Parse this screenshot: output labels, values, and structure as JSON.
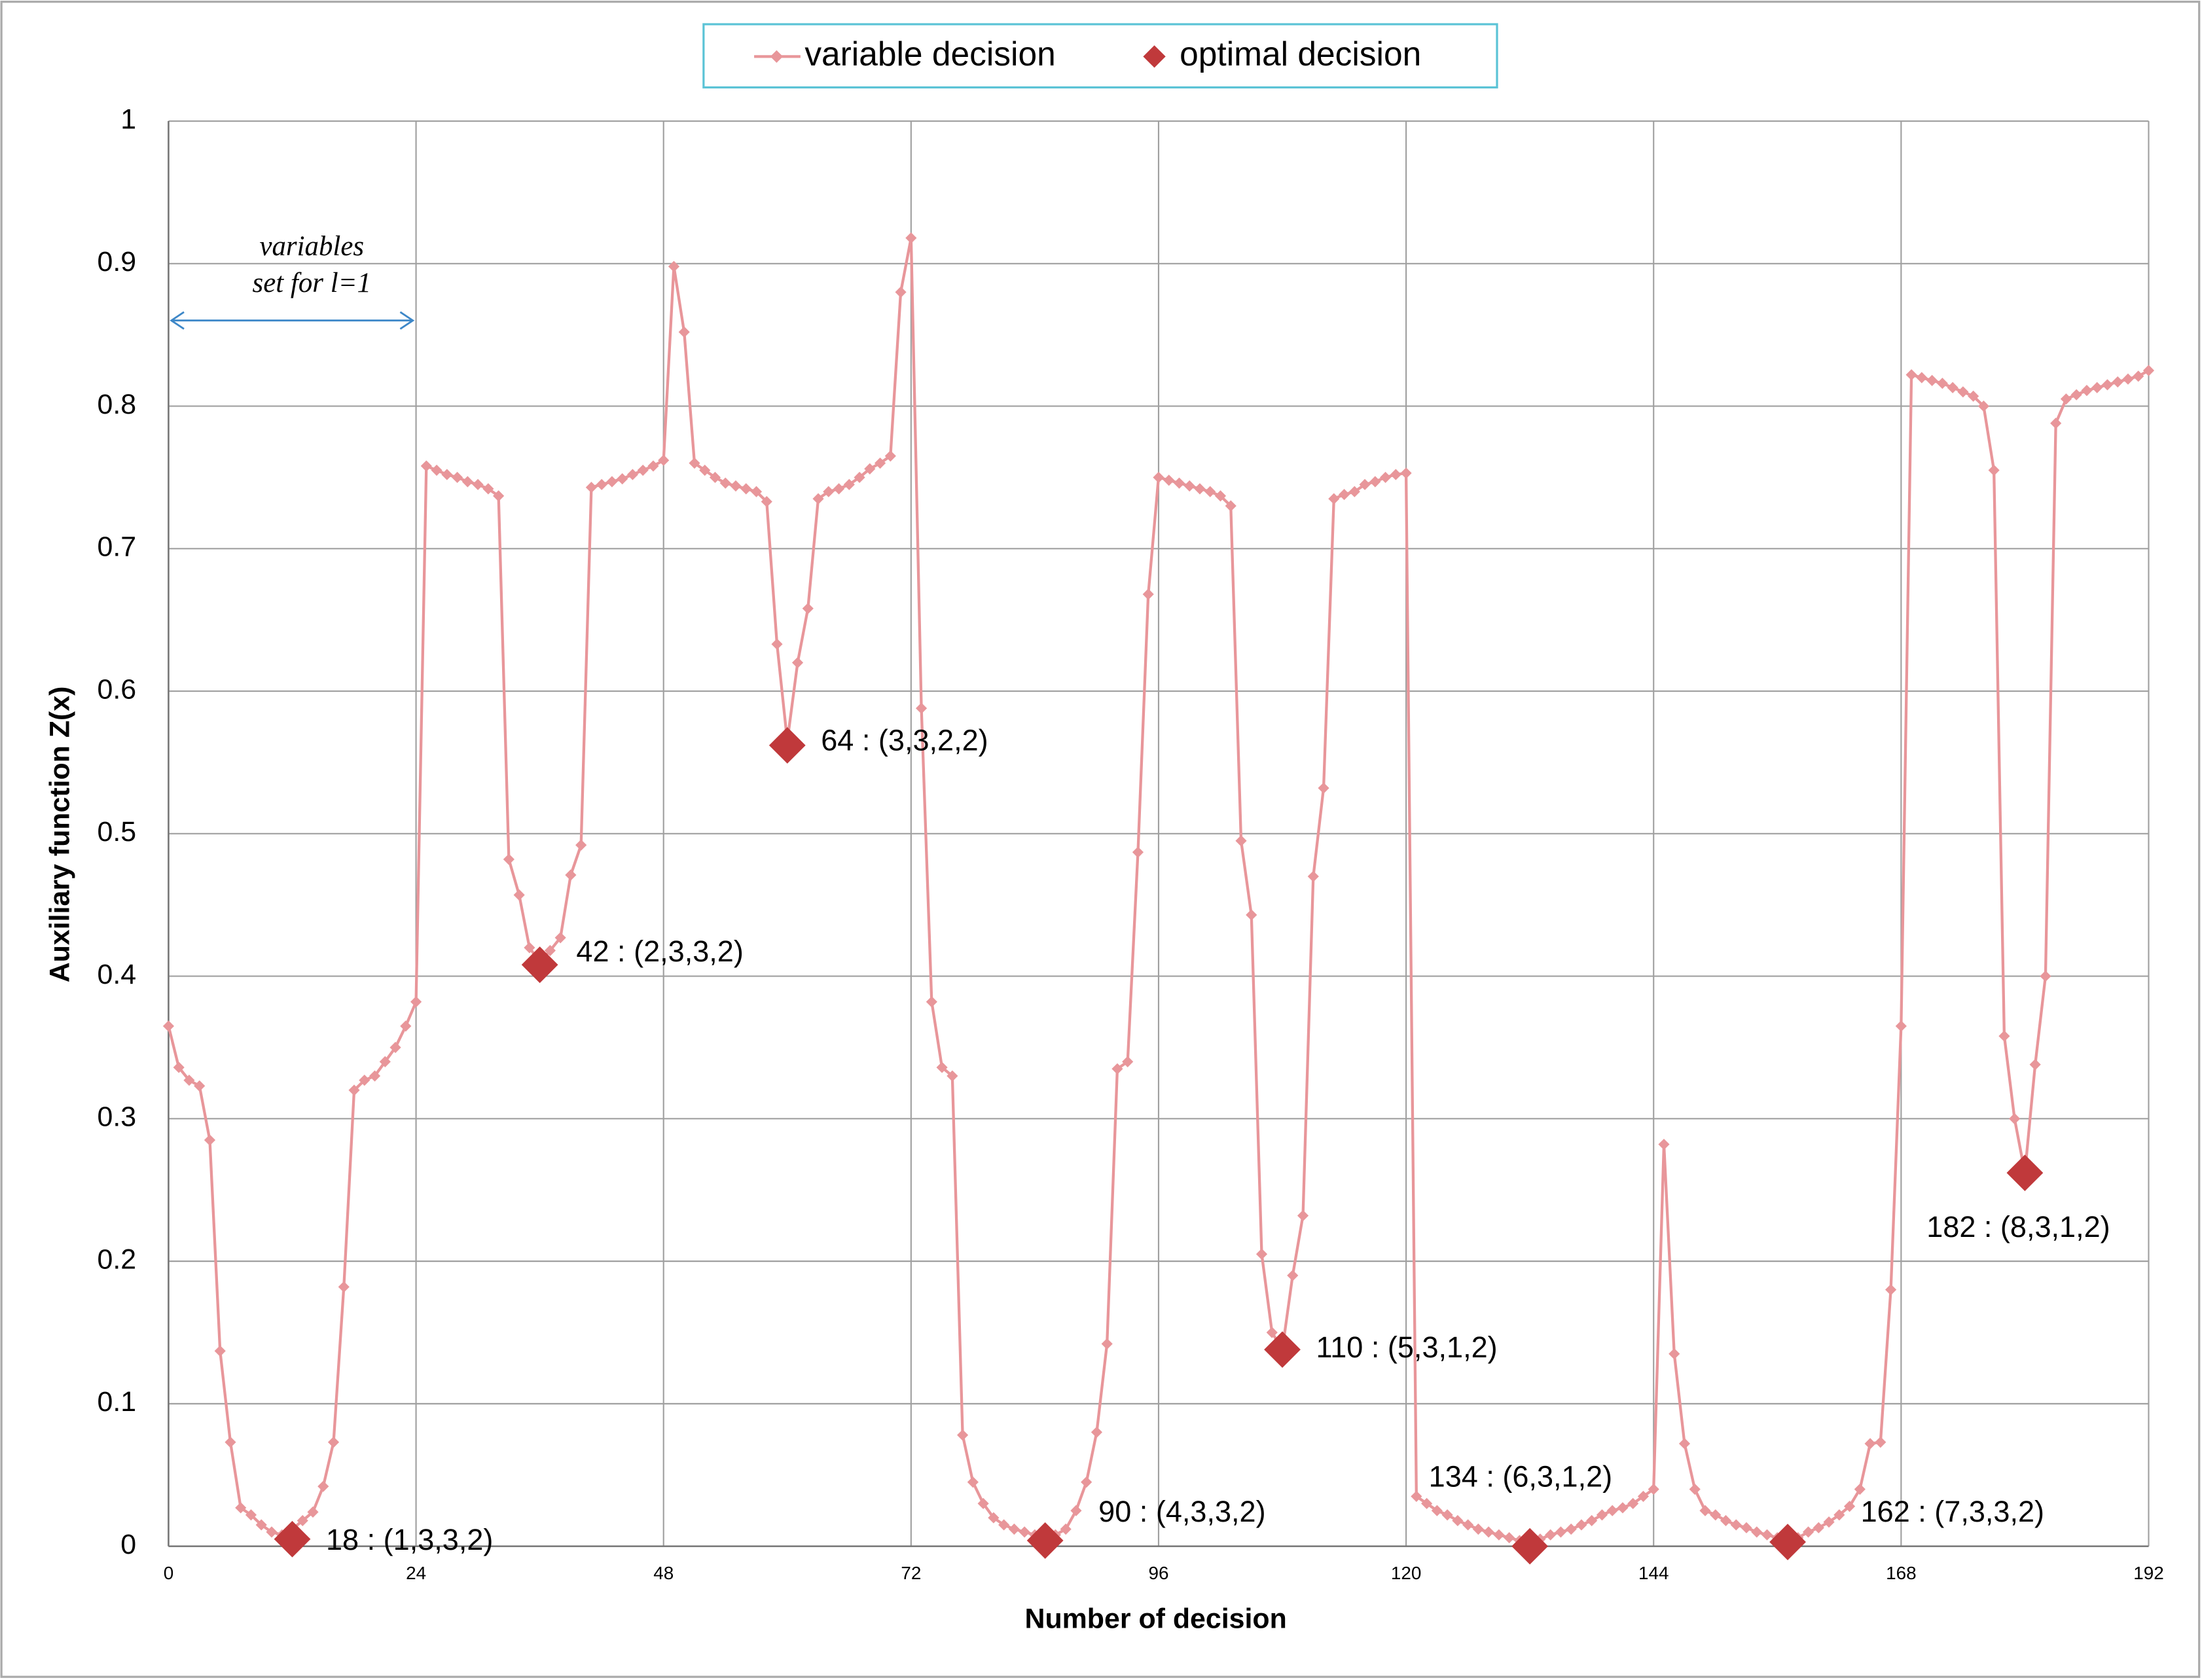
{
  "chart_data": {
    "type": "line",
    "xlabel": "Number of decision",
    "ylabel": "Auxiliary function Z(x)",
    "annotation": [
      "variables",
      "set for l=1"
    ],
    "xlim": [
      0,
      192
    ],
    "xticks": [
      0,
      24,
      48,
      72,
      96,
      120,
      144,
      168,
      192
    ],
    "ylim": [
      0,
      1
    ],
    "yticks": [
      0,
      0.1,
      0.2,
      0.3,
      0.4,
      0.5,
      0.6,
      0.7,
      0.8,
      0.9,
      1
    ],
    "grid": true,
    "legend": "top",
    "series": [
      {
        "name": "variable decision",
        "color": "#e8969a",
        "x": [
          0,
          1,
          2,
          3,
          4,
          5,
          6,
          7,
          8,
          9,
          10,
          11,
          12,
          13,
          14,
          15,
          16,
          17,
          18,
          19,
          20,
          21,
          22,
          23,
          24,
          25,
          26,
          27,
          28,
          29,
          30,
          31,
          32,
          33,
          34,
          35,
          36,
          37,
          38,
          39,
          40,
          41,
          42,
          43,
          44,
          45,
          46,
          47,
          48,
          49,
          50,
          51,
          52,
          53,
          54,
          55,
          56,
          57,
          58,
          59,
          60,
          61,
          62,
          63,
          64,
          65,
          66,
          67,
          68,
          69,
          70,
          71,
          72,
          73,
          74,
          75,
          76,
          77,
          78,
          79,
          80,
          81,
          82,
          83,
          84,
          85,
          86,
          87,
          88,
          89,
          90,
          91,
          92,
          93,
          94,
          95,
          96,
          97,
          98,
          99,
          100,
          101,
          102,
          103,
          104,
          105,
          106,
          107,
          108,
          109,
          110,
          111,
          112,
          113,
          114,
          115,
          116,
          117,
          118,
          119,
          120,
          121,
          122,
          123,
          124,
          125,
          126,
          127,
          128,
          129,
          130,
          131,
          132,
          133,
          134,
          135,
          136,
          137,
          138,
          139,
          140,
          141,
          142,
          143,
          144,
          145,
          146,
          147,
          148,
          149,
          150,
          151,
          152,
          153,
          154,
          155,
          156,
          157,
          158,
          159,
          160,
          161,
          162,
          163,
          164,
          165,
          166,
          167,
          168,
          169,
          170,
          171,
          172,
          173,
          174,
          175,
          176,
          177,
          178,
          179,
          180,
          181,
          182,
          183,
          184,
          185,
          186,
          187,
          188,
          189,
          190,
          191,
          192
        ],
        "values": [
          0.365,
          0.336,
          0.327,
          0.323,
          0.285,
          0.137,
          0.073,
          0.027,
          0.022,
          0.015,
          0.01,
          0.008,
          0.012,
          0.018,
          0.024,
          0.042,
          0.073,
          0.182,
          0.32,
          0.327,
          0.33,
          0.34,
          0.35,
          0.365,
          0.382,
          0.758,
          0.755,
          0.752,
          0.75,
          0.747,
          0.745,
          0.742,
          0.737,
          0.482,
          0.457,
          0.42,
          0.41,
          0.418,
          0.427,
          0.471,
          0.492,
          0.743,
          0.745,
          0.747,
          0.749,
          0.752,
          0.755,
          0.758,
          0.762,
          0.898,
          0.852,
          0.76,
          0.755,
          0.75,
          0.746,
          0.744,
          0.742,
          0.74,
          0.733,
          0.633,
          0.565,
          0.62,
          0.658,
          0.735,
          0.74,
          0.742,
          0.745,
          0.75,
          0.756,
          0.76,
          0.765,
          0.88,
          0.918,
          0.588,
          0.382,
          0.336,
          0.33,
          0.078,
          0.045,
          0.03,
          0.02,
          0.015,
          0.012,
          0.01,
          0.008,
          0.005,
          0.008,
          0.012,
          0.025,
          0.045,
          0.08,
          0.142,
          0.335,
          0.34,
          0.487,
          0.668,
          0.75,
          0.748,
          0.746,
          0.744,
          0.742,
          0.74,
          0.737,
          0.73,
          0.495,
          0.443,
          0.205,
          0.15,
          0.138,
          0.19,
          0.232,
          0.47,
          0.532,
          0.735,
          0.738,
          0.74,
          0.745,
          0.747,
          0.75,
          0.752,
          0.753,
          0.035,
          0.03,
          0.025,
          0.022,
          0.018,
          0.015,
          0.012,
          0.01,
          0.008,
          0.006,
          0.004,
          0.002,
          0.005,
          0.008,
          0.01,
          0.012,
          0.015,
          0.018,
          0.022,
          0.025,
          0.027,
          0.03,
          0.035,
          0.04,
          0.282,
          0.135,
          0.072,
          0.04,
          0.025,
          0.022,
          0.018,
          0.015,
          0.013,
          0.01,
          0.008,
          0.006,
          0.004,
          0.006,
          0.01,
          0.013,
          0.017,
          0.022,
          0.028,
          0.04,
          0.072,
          0.073,
          0.18,
          0.365,
          0.822,
          0.82,
          0.818,
          0.816,
          0.813,
          0.81,
          0.807,
          0.8,
          0.755,
          0.358,
          0.3,
          0.262,
          0.338,
          0.4,
          0.788,
          0.805,
          0.808,
          0.811,
          0.813,
          0.815,
          0.817,
          0.819,
          0.821,
          0.825
        ]
      },
      {
        "name": "optimal decision",
        "color": "#c0393b",
        "x": [
          12,
          36,
          60,
          85,
          108,
          132,
          157,
          180
        ],
        "values": [
          0.005,
          0.408,
          0.562,
          0.004,
          0.138,
          0.0,
          0.003,
          0.262
        ],
        "labels": [
          "18 :  (1,3,3,2)",
          "42 :  (2,3,3,2)",
          "64 :  (3,3,2,2)",
          "90 :  (4,3,3,2)",
          "110 :  (5,3,1,2)",
          "134 : (6,3,1,2)",
          "162 : (7,3,3,2)",
          "182 : (8,3,1,2)"
        ]
      }
    ]
  }
}
